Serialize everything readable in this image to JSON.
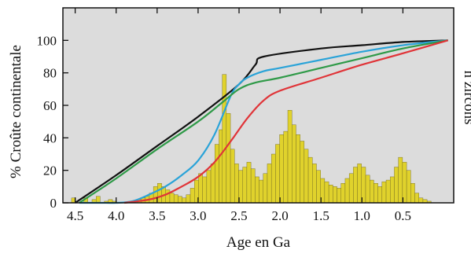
{
  "chart_data": {
    "type": "bar",
    "title": "",
    "xlabel": "Age en Ga",
    "ylabel_left": "% Croûte continentale",
    "ylabel_right": "n zircons",
    "x_axis_reversed": true,
    "xlim": [
      4.65,
      -0.12
    ],
    "ylim": [
      0,
      120
    ],
    "grid": false,
    "legend": "none",
    "x_ticks": [
      "4.5",
      "4.0",
      "3.5",
      "3.0",
      "2.5",
      "2.0",
      "1.5",
      "1.0",
      "0.5"
    ],
    "y_ticks": [
      "0",
      "20",
      "40",
      "60",
      "80",
      "100"
    ],
    "x_tick_values": [
      4.5,
      4.0,
      3.5,
      3.0,
      2.5,
      2.0,
      1.5,
      1.0,
      0.5
    ],
    "y_tick_values": [
      0,
      20,
      40,
      60,
      80,
      100
    ],
    "histogram": {
      "color": "#e0d22c",
      "bin_width": 0.05,
      "values": [
        [
          4.52,
          3
        ],
        [
          4.37,
          3
        ],
        [
          4.27,
          2
        ],
        [
          4.22,
          4
        ],
        [
          4.12,
          1
        ],
        [
          4.07,
          2
        ],
        [
          4.02,
          1
        ],
        [
          3.72,
          2
        ],
        [
          3.67,
          3
        ],
        [
          3.62,
          4
        ],
        [
          3.57,
          6
        ],
        [
          3.52,
          10
        ],
        [
          3.47,
          12
        ],
        [
          3.42,
          10
        ],
        [
          3.37,
          8
        ],
        [
          3.32,
          6
        ],
        [
          3.27,
          5
        ],
        [
          3.22,
          4
        ],
        [
          3.17,
          3
        ],
        [
          3.12,
          5
        ],
        [
          3.07,
          9
        ],
        [
          3.02,
          14
        ],
        [
          2.97,
          18
        ],
        [
          2.92,
          16
        ],
        [
          2.87,
          20
        ],
        [
          2.82,
          24
        ],
        [
          2.77,
          36
        ],
        [
          2.72,
          45
        ],
        [
          2.68,
          79
        ],
        [
          2.63,
          55
        ],
        [
          2.58,
          33
        ],
        [
          2.53,
          24
        ],
        [
          2.48,
          20
        ],
        [
          2.43,
          22
        ],
        [
          2.38,
          25
        ],
        [
          2.33,
          21
        ],
        [
          2.28,
          16
        ],
        [
          2.23,
          14
        ],
        [
          2.18,
          18
        ],
        [
          2.13,
          24
        ],
        [
          2.08,
          30
        ],
        [
          2.03,
          36
        ],
        [
          1.98,
          42
        ],
        [
          1.93,
          44
        ],
        [
          1.88,
          57
        ],
        [
          1.83,
          48
        ],
        [
          1.78,
          42
        ],
        [
          1.73,
          38
        ],
        [
          1.68,
          33
        ],
        [
          1.63,
          28
        ],
        [
          1.58,
          24
        ],
        [
          1.53,
          20
        ],
        [
          1.48,
          15
        ],
        [
          1.43,
          13
        ],
        [
          1.38,
          11
        ],
        [
          1.33,
          10
        ],
        [
          1.28,
          9
        ],
        [
          1.23,
          12
        ],
        [
          1.18,
          15
        ],
        [
          1.13,
          18
        ],
        [
          1.08,
          22
        ],
        [
          1.03,
          24
        ],
        [
          0.98,
          22
        ],
        [
          0.93,
          17
        ],
        [
          0.88,
          14
        ],
        [
          0.83,
          12
        ],
        [
          0.78,
          10
        ],
        [
          0.73,
          13
        ],
        [
          0.68,
          14
        ],
        [
          0.63,
          16
        ],
        [
          0.58,
          22
        ],
        [
          0.53,
          28
        ],
        [
          0.48,
          25
        ],
        [
          0.43,
          20
        ],
        [
          0.38,
          12
        ],
        [
          0.33,
          6
        ],
        [
          0.28,
          3
        ],
        [
          0.23,
          2
        ],
        [
          0.18,
          1
        ]
      ]
    },
    "curves": [
      {
        "color": "#111111",
        "points": [
          [
            4.5,
            0
          ],
          [
            4.0,
            17
          ],
          [
            3.5,
            35
          ],
          [
            3.0,
            53
          ],
          [
            2.5,
            73
          ],
          [
            2.3,
            85
          ],
          [
            2.2,
            90
          ],
          [
            1.5,
            95
          ],
          [
            1.0,
            97
          ],
          [
            0.5,
            99
          ],
          [
            -0.05,
            100
          ]
        ]
      },
      {
        "color": "#2aa3d8",
        "points": [
          [
            4.45,
            0
          ],
          [
            4.2,
            0
          ],
          [
            4.0,
            0
          ],
          [
            3.8,
            1
          ],
          [
            3.6,
            5
          ],
          [
            3.4,
            10
          ],
          [
            3.2,
            17
          ],
          [
            3.0,
            26
          ],
          [
            2.8,
            42
          ],
          [
            2.6,
            66
          ],
          [
            2.5,
            73
          ],
          [
            2.4,
            77
          ],
          [
            2.2,
            81
          ],
          [
            2.0,
            83
          ],
          [
            1.5,
            88
          ],
          [
            1.0,
            93
          ],
          [
            0.5,
            97
          ],
          [
            -0.05,
            100
          ]
        ]
      },
      {
        "color": "#2f9a48",
        "points": [
          [
            4.45,
            0
          ],
          [
            4.0,
            15
          ],
          [
            3.5,
            33
          ],
          [
            3.0,
            50
          ],
          [
            2.7,
            62
          ],
          [
            2.5,
            70
          ],
          [
            2.3,
            74
          ],
          [
            2.0,
            77
          ],
          [
            1.5,
            83
          ],
          [
            1.0,
            89
          ],
          [
            0.5,
            95
          ],
          [
            -0.05,
            100
          ]
        ]
      },
      {
        "color": "#e03438",
        "points": [
          [
            3.9,
            0
          ],
          [
            3.6,
            2
          ],
          [
            3.4,
            5
          ],
          [
            3.2,
            10
          ],
          [
            3.0,
            16
          ],
          [
            2.8,
            25
          ],
          [
            2.6,
            38
          ],
          [
            2.4,
            52
          ],
          [
            2.2,
            63
          ],
          [
            2.0,
            69
          ],
          [
            1.5,
            77
          ],
          [
            1.0,
            85
          ],
          [
            0.5,
            92
          ],
          [
            -0.05,
            100
          ]
        ]
      }
    ]
  }
}
